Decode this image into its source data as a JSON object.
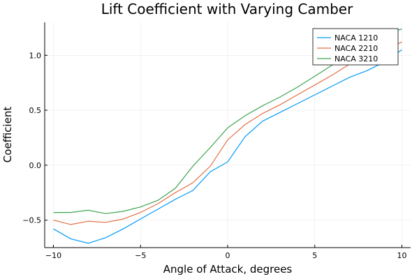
{
  "chart_data": {
    "type": "line",
    "title": "Lift Coefficient with Varying Camber",
    "xlabel": "Angle of Attack, degrees",
    "ylabel": "Coefficient",
    "xlim": [
      -10.5,
      10.5
    ],
    "ylim": [
      -0.75,
      1.3
    ],
    "xticks": [
      -10,
      -5,
      0,
      5,
      10
    ],
    "xtick_labels": [
      "−10",
      "−5",
      "0",
      "5",
      "10"
    ],
    "yticks": [
      -0.5,
      0.0,
      0.5,
      1.0
    ],
    "ytick_labels": [
      "−0.5",
      "0.0",
      "0.5",
      "1.0"
    ],
    "grid": true,
    "legend_position": "top-right",
    "x": [
      -10,
      -9,
      -8,
      -7,
      -6,
      -5,
      -4,
      -3,
      -2,
      -1,
      0,
      1,
      2,
      3,
      4,
      5,
      6,
      7,
      8,
      9,
      10
    ],
    "series": [
      {
        "name": "NACA 1210",
        "color": "#009AFA",
        "values": [
          -0.58,
          -0.67,
          -0.71,
          -0.66,
          -0.58,
          -0.49,
          -0.4,
          -0.31,
          -0.23,
          -0.06,
          0.03,
          0.26,
          0.4,
          0.48,
          0.56,
          0.64,
          0.72,
          0.8,
          0.86,
          0.94,
          1.05
        ]
      },
      {
        "name": "NACA 2210",
        "color": "#E36F47",
        "values": [
          -0.5,
          -0.54,
          -0.51,
          -0.52,
          -0.49,
          -0.43,
          -0.35,
          -0.25,
          -0.16,
          -0.01,
          0.23,
          0.37,
          0.47,
          0.55,
          0.64,
          0.73,
          0.82,
          0.92,
          1.0,
          1.06,
          1.12
        ]
      },
      {
        "name": "NACA 3210",
        "color": "#3EA44E",
        "values": [
          -0.43,
          -0.43,
          -0.41,
          -0.44,
          -0.42,
          -0.38,
          -0.32,
          -0.21,
          -0.01,
          0.16,
          0.34,
          0.45,
          0.54,
          0.62,
          0.71,
          0.81,
          0.91,
          1.02,
          1.11,
          1.19,
          1.24
        ]
      }
    ]
  }
}
